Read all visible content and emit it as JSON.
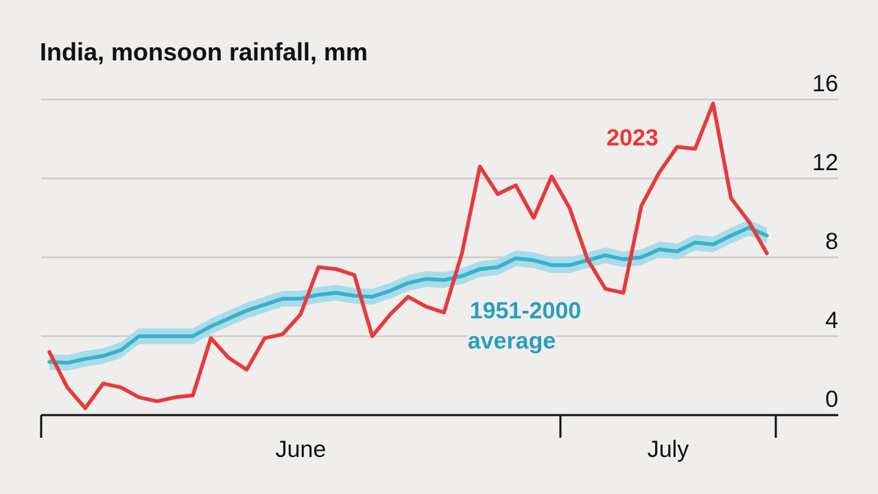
{
  "chart_data": {
    "type": "line",
    "title": "India, monsoon rainfall, mm",
    "categories": [
      null,
      null,
      null,
      null,
      null,
      null,
      null,
      null,
      null,
      null,
      null,
      null,
      null,
      null,
      null,
      null,
      null,
      null,
      null,
      null,
      null,
      null,
      null,
      null,
      null,
      null,
      null,
      null,
      null,
      null,
      null,
      null,
      null,
      null,
      null,
      null,
      null,
      null,
      null,
      null,
      null
    ],
    "x_labels": [
      "June",
      "July"
    ],
    "series": [
      {
        "name": "1951-2000 average",
        "color": "#36b1cc",
        "band": 0.4,
        "band_color": "#a9dce8",
        "values": [
          2.7,
          2.65,
          2.85,
          3.0,
          3.3,
          4.0,
          4.0,
          4.0,
          4.0,
          4.5,
          4.9,
          5.3,
          5.6,
          5.9,
          5.9,
          6.1,
          6.2,
          6.05,
          6.0,
          6.3,
          6.7,
          6.9,
          6.85,
          7.05,
          7.4,
          7.5,
          7.95,
          7.85,
          7.6,
          7.6,
          7.85,
          8.1,
          7.9,
          8.0,
          8.4,
          8.3,
          8.75,
          8.65,
          9.1,
          9.5,
          9.1
        ]
      },
      {
        "name": "2023",
        "color": "#e8393a",
        "values": [
          3.2,
          1.4,
          0.35,
          1.6,
          1.4,
          0.9,
          0.7,
          0.9,
          1.0,
          3.9,
          2.9,
          2.3,
          3.9,
          4.1,
          5.1,
          7.5,
          7.4,
          7.1,
          4.0,
          5.1,
          6.0,
          5.5,
          5.2,
          8.2,
          12.6,
          11.2,
          11.65,
          10.0,
          12.1,
          10.5,
          7.9,
          6.4,
          6.2,
          10.6,
          12.3,
          13.6,
          13.5,
          15.8,
          11.0,
          9.8,
          8.2
        ]
      }
    ],
    "ylim": [
      0,
      16
    ],
    "yticks": [
      0,
      4,
      8,
      12,
      16
    ],
    "grid": true
  }
}
